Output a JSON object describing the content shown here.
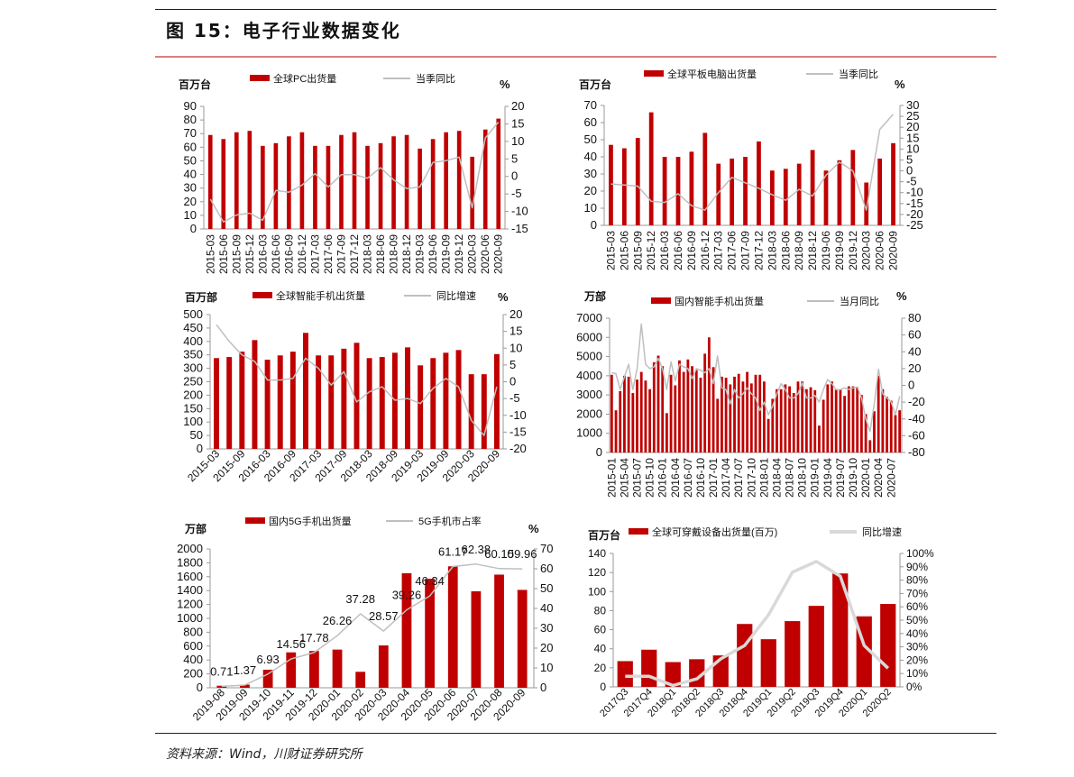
{
  "header": {
    "title": "图 15：电子行业数据变化"
  },
  "footer": {
    "source": "资料来源：Wind，川财证券研究所"
  },
  "colors": {
    "bar": "#c00000",
    "line": "#bfbfbf",
    "title_rule": "#d98080"
  },
  "chart_data": [
    {
      "type": "bar+line",
      "left_unit": "百万台",
      "right_unit": "%",
      "bar_series": "全球PC出货量",
      "line_series": "当季同比",
      "categories": [
        "2015-03",
        "2015-06",
        "2015-09",
        "2015-12",
        "2016-03",
        "2016-06",
        "2016-09",
        "2016-12",
        "2017-03",
        "2017-06",
        "2017-09",
        "2017-12",
        "2018-03",
        "2018-06",
        "2018-09",
        "2018-12",
        "2019-03",
        "2019-06",
        "2019-09",
        "2019-12",
        "2020-03",
        "2020-06",
        "2020-09"
      ],
      "bar_values": [
        69,
        66,
        71,
        72,
        61,
        63,
        68,
        71,
        61,
        61,
        69,
        71,
        61,
        63,
        68,
        69,
        59,
        66,
        71,
        72,
        53,
        73,
        81
      ],
      "line_values": [
        -6.5,
        -13,
        -11,
        -10.5,
        -12.5,
        -4,
        -4.5,
        -2.5,
        0.8,
        -3,
        0.5,
        0.5,
        -0.5,
        2.5,
        -1,
        -3.5,
        -3,
        4,
        4.5,
        5.5,
        -9,
        11,
        15.5
      ],
      "ylim_left": [
        0,
        90
      ],
      "yticks_left": [
        0,
        10,
        20,
        30,
        40,
        50,
        60,
        70,
        80,
        90
      ],
      "ylim_right": [
        -15,
        20
      ],
      "yticks_right": [
        -15,
        -10,
        -5,
        0,
        5,
        10,
        15,
        20
      ],
      "legend": "top"
    },
    {
      "type": "bar+line",
      "left_unit": "百万台",
      "right_unit": "%",
      "bar_series": "全球平板电脑出货量",
      "line_series": "当季同比",
      "categories": [
        "2015-03",
        "2015-06",
        "2015-09",
        "2015-12",
        "2016-03",
        "2016-06",
        "2016-09",
        "2016-12",
        "2017-03",
        "2017-06",
        "2017-09",
        "2017-12",
        "2018-03",
        "2018-06",
        "2018-09",
        "2018-12",
        "2019-06",
        "2019-09",
        "2019-12",
        "2020-03",
        "2020-06",
        "2020-09"
      ],
      "bar_values": [
        47,
        45,
        51,
        66,
        40,
        40,
        43,
        54,
        36,
        39,
        40,
        49,
        32,
        33,
        36,
        44,
        32,
        38,
        44,
        25,
        39,
        48
      ],
      "line_values": [
        -6,
        -6.5,
        -7,
        -14,
        -14.5,
        -10.5,
        -16,
        -18,
        -10,
        -3,
        -5.5,
        -8,
        -11,
        -13.5,
        -8.5,
        -11.5,
        -2,
        4,
        0,
        -18,
        19,
        26
      ],
      "ylim_left": [
        0,
        70
      ],
      "yticks_left": [
        0,
        10,
        20,
        30,
        40,
        50,
        60,
        70
      ],
      "ylim_right": [
        -25,
        30
      ],
      "yticks_right": [
        -25,
        -20,
        -15,
        -10,
        -5,
        0,
        5,
        10,
        15,
        20,
        25,
        30
      ],
      "legend": "top"
    },
    {
      "type": "bar+line",
      "left_unit": "百万部",
      "right_unit": "%",
      "bar_series": "全球智能手机出货量",
      "line_series": "同比增速",
      "categories": [
        "2015-03",
        "2015-06",
        "2015-09",
        "2015-12",
        "2016-03",
        "2016-06",
        "2016-09",
        "2016-12",
        "2017-03",
        "2017-06",
        "2017-09",
        "2017-12",
        "2018-03",
        "2018-06",
        "2018-09",
        "2018-12",
        "2019-03",
        "2019-06",
        "2019-09",
        "2019-12",
        "2020-03",
        "2020-06",
        "2020-09"
      ],
      "bar_values": [
        338,
        342,
        362,
        405,
        332,
        348,
        362,
        432,
        348,
        348,
        373,
        395,
        338,
        342,
        358,
        378,
        311,
        338,
        358,
        368,
        278,
        278,
        353
      ],
      "line_values": [
        17,
        12,
        8,
        6,
        0.5,
        0.5,
        1,
        7,
        4,
        -1,
        3,
        -6,
        -3,
        -1.5,
        -5.5,
        -5,
        -6.5,
        -2,
        1,
        -1.5,
        -11.5,
        -16,
        -1.5
      ],
      "ylim_left": [
        0,
        500
      ],
      "yticks_left": [
        0,
        50,
        100,
        150,
        200,
        250,
        300,
        350,
        400,
        450,
        500
      ],
      "ylim_right": [
        -20,
        20
      ],
      "yticks_right": [
        -20,
        -15,
        -10,
        -5,
        0,
        5,
        10,
        15,
        20
      ],
      "legend": "top"
    },
    {
      "type": "bar+line",
      "left_unit": "万部",
      "right_unit": "%",
      "bar_series": "国内智能手机出货量",
      "line_series": "当月同比",
      "categories": [
        "2015-01",
        "2015-02",
        "2015-03",
        "2015-04",
        "2015-05",
        "2015-06",
        "2015-07",
        "2015-08",
        "2015-09",
        "2015-10",
        "2015-11",
        "2015-12",
        "2016-01",
        "2016-02",
        "2016-03",
        "2016-04",
        "2016-05",
        "2016-06",
        "2016-07",
        "2016-08",
        "2016-09",
        "2016-10",
        "2016-11",
        "2016-12",
        "2017-01",
        "2017-02",
        "2017-03",
        "2017-04",
        "2017-05",
        "2017-06",
        "2017-07",
        "2017-08",
        "2017-09",
        "2017-10",
        "2017-11",
        "2017-12",
        "2018-01",
        "2018-02",
        "2018-03",
        "2018-04",
        "2018-05",
        "2018-06",
        "2018-07",
        "2018-08",
        "2018-09",
        "2018-10",
        "2018-11",
        "2018-12",
        "2019-01",
        "2019-02",
        "2019-03",
        "2019-04",
        "2019-05",
        "2019-06",
        "2019-07",
        "2019-08",
        "2019-09",
        "2019-10",
        "2019-11",
        "2019-12",
        "2020-01",
        "2020-02",
        "2020-03",
        "2020-04",
        "2020-05",
        "2020-06",
        "2020-07",
        "2020-08",
        "2020-09"
      ],
      "bar_values": [
        4050,
        2200,
        3200,
        4000,
        3950,
        3100,
        3800,
        4200,
        3750,
        3300,
        4700,
        5050,
        4500,
        2050,
        4050,
        3500,
        4800,
        4200,
        4850,
        4500,
        4300,
        3900,
        5150,
        6000,
        4450,
        2800,
        3950,
        3900,
        3550,
        3950,
        4100,
        3700,
        4200,
        3600,
        4050,
        4050,
        3700,
        1750,
        2800,
        3300,
        3300,
        3550,
        3450,
        3100,
        3700,
        3700,
        3300,
        3400,
        3250,
        1400,
        2750,
        3550,
        3700,
        3300,
        3300,
        2950,
        3450,
        3450,
        3400,
        3000,
        2000,
        640,
        2150,
        4000,
        3300,
        2900,
        2700,
        1950,
        2200
      ],
      "line_values": [
        15,
        14,
        -5,
        10,
        25,
        -5,
        20,
        73,
        25,
        20,
        22,
        32,
        20,
        -5,
        28,
        5,
        25,
        22,
        20,
        8,
        20,
        18,
        15,
        20,
        2,
        35,
        -3,
        -5,
        -22,
        -5,
        -15,
        -10,
        -3,
        -10,
        -15,
        -30,
        -20,
        -35,
        -25,
        -10,
        2,
        -5,
        -15,
        -15,
        -10,
        3,
        -15,
        -15,
        -12,
        -20,
        -5,
        7,
        2,
        -5,
        -5,
        -3,
        -5,
        -3,
        -2,
        -15,
        -40,
        -55,
        -22,
        19,
        -10,
        -15,
        -20,
        -35,
        -13
      ],
      "ylim_left": [
        0,
        7000
      ],
      "yticks_left": [
        0,
        1000,
        2000,
        3000,
        4000,
        5000,
        6000,
        7000
      ],
      "ylim_right": [
        -80,
        80
      ],
      "yticks_right": [
        -80,
        -60,
        -40,
        -20,
        0,
        20,
        40,
        60,
        80
      ],
      "legend": "top"
    },
    {
      "type": "bar+line",
      "left_unit": "万部",
      "right_unit": "%",
      "bar_series": "国内5G手机出货量",
      "line_series": "5G手机市占率",
      "categories": [
        "2019-08",
        "2019-09",
        "2019-10",
        "2019-11",
        "2019-12",
        "2020-01",
        "2020-02",
        "2020-03",
        "2020-04",
        "2020-05",
        "2020-06",
        "2020-07",
        "2020-08",
        "2020-09"
      ],
      "bar_values": [
        30,
        45,
        260,
        510,
        530,
        550,
        230,
        610,
        1650,
        1570,
        1750,
        1390,
        1630,
        1410
      ],
      "line_values": [
        0.71,
        1.37,
        6.93,
        14.56,
        17.78,
        26.26,
        37.28,
        28.57,
        39.26,
        46.34,
        61.17,
        62.38,
        60.1,
        59.96
      ],
      "line_labels": [
        "0.71",
        "1.37",
        "6.93",
        "14.56",
        "17.78",
        "26.26",
        "37.28",
        "28.57",
        "39.26",
        "46.34",
        "61.17",
        "62.38",
        "60.10",
        "59.96"
      ],
      "ylim_left": [
        0,
        2000
      ],
      "yticks_left": [
        0,
        200,
        400,
        600,
        800,
        1000,
        1200,
        1400,
        1600,
        1800,
        2000
      ],
      "ylim_right": [
        0,
        70
      ],
      "yticks_right": [
        0,
        10,
        20,
        30,
        40,
        50,
        60,
        70
      ],
      "legend": "top"
    },
    {
      "type": "bar+line",
      "left_unit": "百万台",
      "right_unit": "",
      "bar_series": "全球可穿戴设备出货量(百万)",
      "line_series": "同比增速",
      "categories": [
        "2017Q3",
        "2017Q4",
        "2018Q1",
        "2018Q2",
        "2018Q3",
        "2018Q4",
        "2019Q1",
        "2019Q2",
        "2019Q3",
        "2019Q4",
        "2020Q1",
        "2020Q2"
      ],
      "bar_values": [
        27,
        39,
        26,
        29,
        33,
        66,
        50,
        69,
        85,
        119,
        74,
        87
      ],
      "line_values": [
        8,
        8,
        1,
        6,
        21,
        31,
        54,
        86,
        94,
        83,
        31,
        14
      ],
      "ylim_left": [
        0,
        140
      ],
      "yticks_left": [
        0,
        20,
        40,
        60,
        80,
        100,
        120,
        140
      ],
      "ylim_right": [
        0,
        100
      ],
      "yticks_right": [
        "0%",
        "10%",
        "20%",
        "30%",
        "40%",
        "50%",
        "60%",
        "70%",
        "80%",
        "90%",
        "100%"
      ],
      "legend": "top"
    }
  ]
}
